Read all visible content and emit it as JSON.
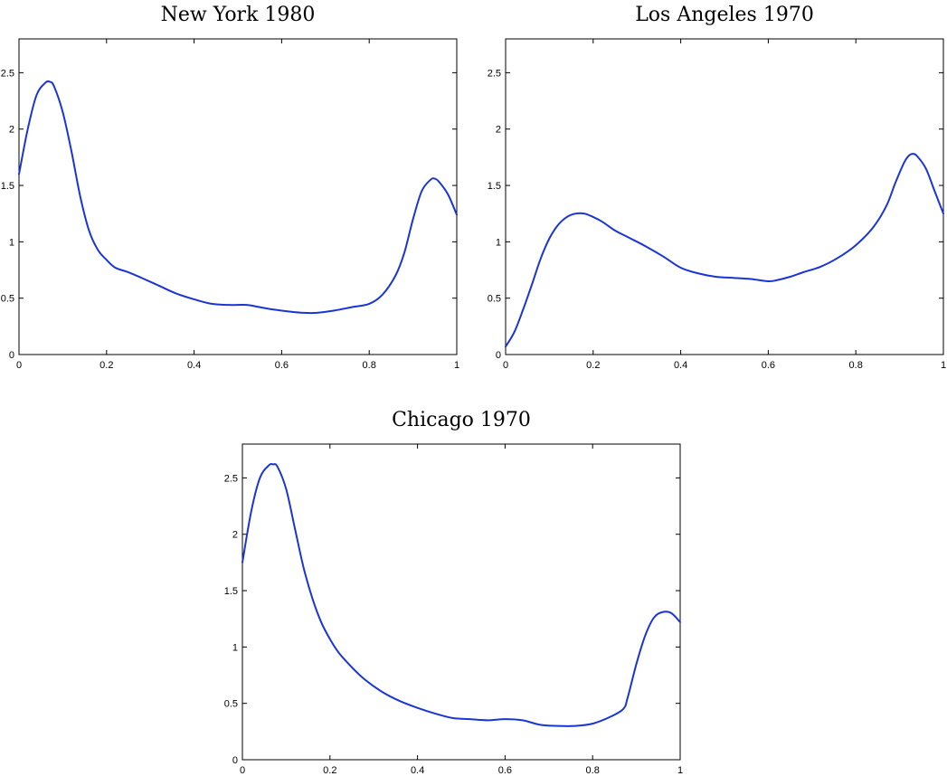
{
  "chart_data": [
    {
      "type": "line",
      "title": "New York 1980",
      "xlim": [
        0,
        1
      ],
      "ylim": [
        0,
        2.8
      ],
      "xticks": [
        "0",
        "0.2",
        "0.4",
        "0.6",
        "0.8",
        "1"
      ],
      "yticks": [
        "0",
        "0.5",
        "1",
        "1.5",
        "2",
        "2.5"
      ],
      "grid": false,
      "series": [
        {
          "color": "#1a35d6",
          "x": [
            0,
            0.02,
            0.04,
            0.06,
            0.07,
            0.08,
            0.1,
            0.12,
            0.14,
            0.16,
            0.18,
            0.2,
            0.22,
            0.25,
            0.28,
            0.32,
            0.36,
            0.4,
            0.44,
            0.48,
            0.52,
            0.55,
            0.58,
            0.62,
            0.65,
            0.68,
            0.72,
            0.76,
            0.8,
            0.83,
            0.86,
            0.88,
            0.9,
            0.92,
            0.94,
            0.95,
            0.96,
            0.98,
            1.0
          ],
          "y": [
            1.6,
            2.0,
            2.3,
            2.41,
            2.42,
            2.38,
            2.15,
            1.8,
            1.4,
            1.1,
            0.93,
            0.84,
            0.77,
            0.73,
            0.68,
            0.61,
            0.54,
            0.49,
            0.45,
            0.44,
            0.44,
            0.42,
            0.4,
            0.38,
            0.37,
            0.37,
            0.39,
            0.42,
            0.45,
            0.53,
            0.7,
            0.9,
            1.2,
            1.45,
            1.55,
            1.56,
            1.53,
            1.42,
            1.24
          ]
        }
      ]
    },
    {
      "type": "line",
      "title": "Los Angeles 1970",
      "xlim": [
        0,
        1
      ],
      "ylim": [
        0,
        2.8
      ],
      "xticks": [
        "0",
        "0.2",
        "0.4",
        "0.6",
        "0.8",
        "1"
      ],
      "yticks": [
        "0",
        "0.5",
        "1",
        "1.5",
        "2",
        "2.5"
      ],
      "grid": false,
      "series": [
        {
          "color": "#1a35d6",
          "x": [
            0,
            0.02,
            0.04,
            0.06,
            0.08,
            0.1,
            0.12,
            0.14,
            0.16,
            0.18,
            0.2,
            0.22,
            0.25,
            0.28,
            0.32,
            0.36,
            0.4,
            0.44,
            0.48,
            0.52,
            0.56,
            0.6,
            0.62,
            0.65,
            0.68,
            0.72,
            0.76,
            0.8,
            0.84,
            0.87,
            0.89,
            0.91,
            0.92,
            0.93,
            0.94,
            0.96,
            0.98,
            1.0
          ],
          "y": [
            0.07,
            0.2,
            0.4,
            0.62,
            0.85,
            1.03,
            1.15,
            1.22,
            1.25,
            1.25,
            1.22,
            1.18,
            1.1,
            1.04,
            0.96,
            0.87,
            0.77,
            0.72,
            0.69,
            0.68,
            0.67,
            0.65,
            0.66,
            0.69,
            0.73,
            0.78,
            0.86,
            0.97,
            1.13,
            1.32,
            1.52,
            1.7,
            1.76,
            1.78,
            1.76,
            1.65,
            1.45,
            1.25
          ]
        }
      ]
    },
    {
      "type": "line",
      "title": "Chicago 1970",
      "xlim": [
        0,
        1
      ],
      "ylim": [
        0,
        2.8
      ],
      "xticks": [
        "0",
        "0.2",
        "0.4",
        "0.6",
        "0.8",
        "1"
      ],
      "yticks": [
        "0",
        "0.5",
        "1",
        "1.5",
        "2",
        "2.5"
      ],
      "grid": false,
      "series": [
        {
          "color": "#1a35d6",
          "x": [
            0,
            0.02,
            0.04,
            0.06,
            0.07,
            0.08,
            0.1,
            0.12,
            0.14,
            0.16,
            0.18,
            0.2,
            0.22,
            0.25,
            0.28,
            0.32,
            0.36,
            0.4,
            0.44,
            0.48,
            0.52,
            0.56,
            0.6,
            0.64,
            0.68,
            0.72,
            0.76,
            0.8,
            0.84,
            0.87,
            0.88,
            0.9,
            0.92,
            0.94,
            0.96,
            0.98,
            1.0
          ],
          "y": [
            1.75,
            2.2,
            2.5,
            2.61,
            2.62,
            2.6,
            2.4,
            2.05,
            1.7,
            1.43,
            1.22,
            1.07,
            0.95,
            0.82,
            0.71,
            0.6,
            0.52,
            0.46,
            0.41,
            0.37,
            0.36,
            0.35,
            0.36,
            0.35,
            0.31,
            0.3,
            0.3,
            0.32,
            0.38,
            0.45,
            0.55,
            0.85,
            1.1,
            1.26,
            1.31,
            1.3,
            1.22
          ]
        }
      ]
    }
  ]
}
